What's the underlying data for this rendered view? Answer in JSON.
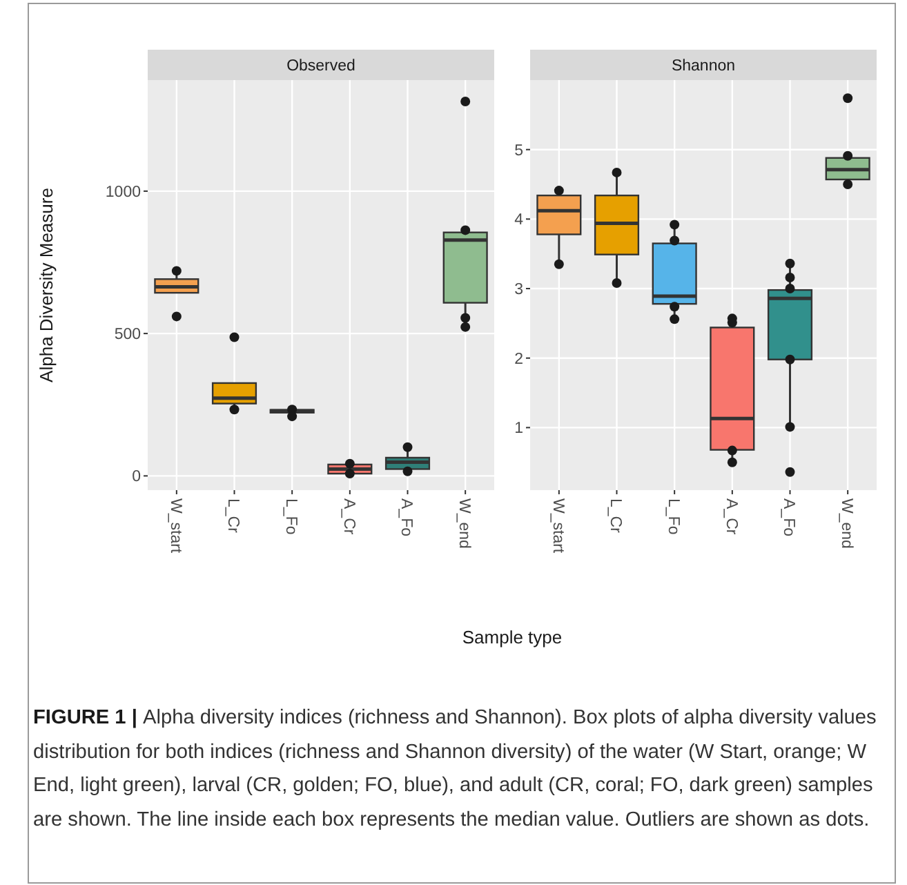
{
  "chart_data": [
    {
      "type": "box",
      "title": "Observed",
      "ylabel": "Alpha Diversity Measure",
      "xlabel": "Sample type",
      "categories": [
        "W_start",
        "L_Cr",
        "L_Fo",
        "A_Cr",
        "A_Fo",
        "W_end"
      ],
      "ylim": [
        -50,
        1390
      ],
      "yticks": [
        0,
        500,
        1000
      ],
      "grid": true,
      "annotations": [
        "FIGURE 1 |",
        "Alpha diversity indices (richness and Shannon). Box plots of alpha diversity values distribution for both indices (richness and Shannon diversity) of the water (W Start, orange; W End, light green), larval (CR, golden; FO, blue), and adult (CR, coral; FO, dark green) samples are shown. The line inside each box represents the median value. Outliers are shown as dots."
      ],
      "series": [
        {
          "colors": [
            "#f4a04f",
            "#e6a000",
            "#56b4e9",
            "#f8766d",
            "#2f7f78",
            "#8fbc8f"
          ],
          "boxes": [
            {
              "low": 643,
              "q1": 643,
              "median": 664,
              "q3": 691,
              "high": 720,
              "outliers": [
                560
              ]
            },
            {
              "low": 233,
              "q1": 254,
              "median": 273,
              "q3": 326,
              "high": 326,
              "outliers": [
                487
              ]
            },
            {
              "low": 209,
              "q1": 222,
              "median": 228,
              "q3": 232,
              "high": 233
            },
            {
              "low": 8,
              "q1": 8,
              "median": 24,
              "q3": 40,
              "high": 43
            },
            {
              "low": 16,
              "q1": 24,
              "median": 48,
              "q3": 64,
              "high": 101
            },
            {
              "low": 523,
              "q1": 608,
              "median": 828,
              "q3": 855,
              "high": 863,
              "outliers": [
                1315
              ]
            }
          ]
        },
        {
          "type": "scatter",
          "color": "#1a1a1a",
          "x": [
            "W_start",
            "L_Cr",
            "L_Fo",
            "L_Fo",
            "A_Cr",
            "A_Cr",
            "A_Fo",
            "A_Fo",
            "W_end",
            "W_end",
            "W_end"
          ],
          "values": [
            720,
            233,
            233,
            209,
            43,
            8,
            101,
            16,
            863,
            555,
            523
          ]
        }
      ]
    },
    {
      "type": "box",
      "title": "Shannon",
      "categories": [
        "W_start",
        "L_Cr",
        "L_Fo",
        "A_Cr",
        "A_Fo",
        "W_end"
      ],
      "ylim": [
        0.1,
        6.0
      ],
      "yticks": [
        1,
        2,
        3,
        4,
        5
      ],
      "grid": true,
      "series": [
        {
          "colors": [
            "#f4a04f",
            "#e6a000",
            "#56b4e9",
            "#f8766d",
            "#31908c",
            "#8fbc8f"
          ],
          "boxes": [
            {
              "low": 3.35,
              "q1": 3.78,
              "median": 4.12,
              "q3": 4.34,
              "high": 4.41
            },
            {
              "low": 3.08,
              "q1": 3.49,
              "median": 3.94,
              "q3": 4.34,
              "high": 4.67
            },
            {
              "low": 2.56,
              "q1": 2.78,
              "median": 2.89,
              "q3": 3.65,
              "high": 3.92
            },
            {
              "low": 0.5,
              "q1": 0.68,
              "median": 1.13,
              "q3": 2.44,
              "high": 2.57
            },
            {
              "low": 1.01,
              "q1": 1.98,
              "median": 2.86,
              "q3": 2.98,
              "high": 3.36,
              "outliers": [
                0.36
              ]
            },
            {
              "low": 4.5,
              "q1": 4.57,
              "median": 4.71,
              "q3": 4.88,
              "high": 4.91,
              "outliers": [
                5.74
              ]
            }
          ]
        },
        {
          "type": "scatter",
          "color": "#1a1a1a",
          "x": [
            "W_start",
            "W_start",
            "L_Cr",
            "L_Cr",
            "L_Fo",
            "L_Fo",
            "L_Fo",
            "L_Fo",
            "A_Cr",
            "A_Cr",
            "A_Cr",
            "A_Cr",
            "A_Fo",
            "A_Fo",
            "A_Fo",
            "A_Fo",
            "A_Fo",
            "W_end",
            "W_end"
          ],
          "values": [
            4.41,
            3.35,
            4.67,
            3.08,
            3.92,
            3.69,
            2.74,
            2.56,
            2.57,
            2.51,
            0.67,
            0.5,
            3.36,
            3.16,
            3.0,
            1.98,
            1.01,
            4.91,
            4.5
          ]
        }
      ]
    }
  ]
}
